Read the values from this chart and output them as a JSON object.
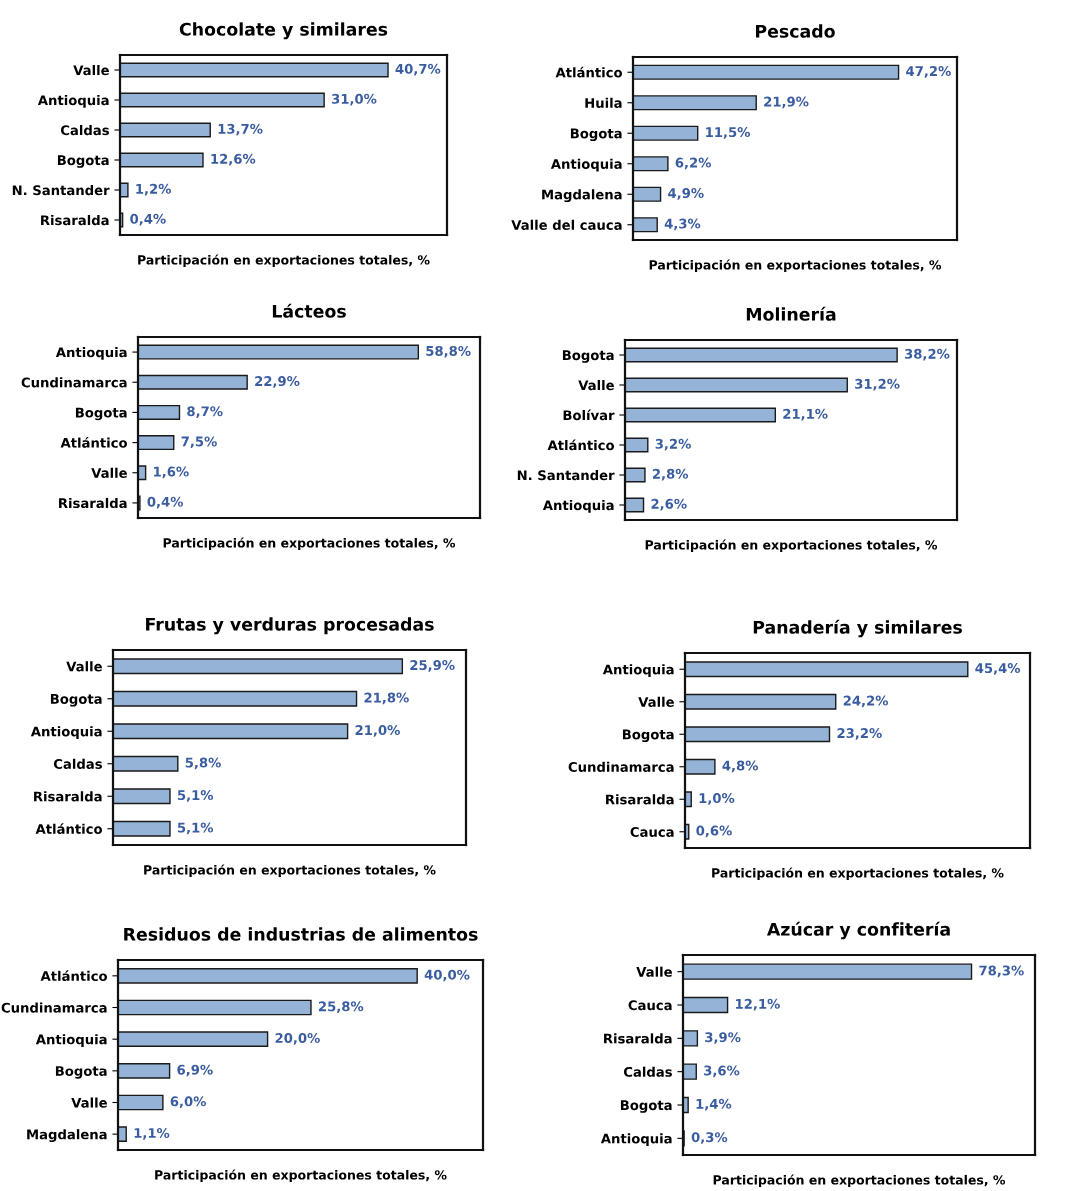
{
  "chart_data": [
    {
      "type": "bar",
      "orientation": "horizontal",
      "title": "Chocolate y similares",
      "xlabel": "Participación en exportaciones totales, %",
      "categories": [
        "Valle",
        "Antioquia",
        "Caldas",
        "Bogota",
        "N. Santander",
        "Risaralda"
      ],
      "values": [
        40.7,
        31.0,
        13.7,
        12.6,
        1.2,
        0.4
      ],
      "value_labels": [
        "40,7%",
        "31,0%",
        "13,7%",
        "12,6%",
        "1,2%",
        "0,4%"
      ],
      "color": "#95b3d7",
      "grid": false,
      "legend": false
    },
    {
      "type": "bar",
      "orientation": "horizontal",
      "title": "Pescado",
      "xlabel": "Participación en exportaciones totales, %",
      "categories": [
        "Atlántico",
        "Huila",
        "Bogota",
        "Antioquia",
        "Magdalena",
        "Valle del cauca"
      ],
      "values": [
        47.2,
        21.9,
        11.5,
        6.2,
        4.9,
        4.3
      ],
      "value_labels": [
        "47,2%",
        "21,9%",
        "11,5%",
        "6,2%",
        "4,9%",
        "4,3%"
      ],
      "color": "#95b3d7",
      "grid": false,
      "legend": false
    },
    {
      "type": "bar",
      "orientation": "horizontal",
      "title": "Lácteos",
      "xlabel": "Participación en exportaciones totales, %",
      "categories": [
        "Antioquia",
        "Cundinamarca",
        "Bogota",
        "Atlántico",
        "Valle",
        "Risaralda"
      ],
      "values": [
        58.8,
        22.9,
        8.7,
        7.5,
        1.6,
        0.4
      ],
      "value_labels": [
        "58,8%",
        "22,9%",
        "8,7%",
        "7,5%",
        "1,6%",
        "0,4%"
      ],
      "color": "#95b3d7",
      "grid": false,
      "legend": false
    },
    {
      "type": "bar",
      "orientation": "horizontal",
      "title": "Molinería",
      "xlabel": "Participación en exportaciones totales, %",
      "categories": [
        "Bogota",
        "Valle",
        "Bolívar",
        "Atlántico",
        "N. Santander",
        "Antioquia"
      ],
      "values": [
        38.2,
        31.2,
        21.1,
        3.2,
        2.8,
        2.6
      ],
      "value_labels": [
        "38,2%",
        "31,2%",
        "21,1%",
        "3,2%",
        "2,8%",
        "2,6%"
      ],
      "color": "#95b3d7",
      "grid": false,
      "legend": false
    },
    {
      "type": "bar",
      "orientation": "horizontal",
      "title": "Frutas y verduras procesadas",
      "xlabel": "Participación en exportaciones totales, %",
      "categories": [
        "Valle",
        "Bogota",
        "Antioquia",
        "Caldas",
        "Risaralda",
        "Atlántico"
      ],
      "values": [
        25.9,
        21.8,
        21.0,
        5.8,
        5.1,
        5.1
      ],
      "value_labels": [
        "25,9%",
        "21,8%",
        "21,0%",
        "5,8%",
        "5,1%",
        "5,1%"
      ],
      "color": "#95b3d7",
      "grid": false,
      "legend": false
    },
    {
      "type": "bar",
      "orientation": "horizontal",
      "title": "Panadería y similares",
      "xlabel": "Participación en exportaciones totales, %",
      "categories": [
        "Antioquia",
        "Valle",
        "Bogota",
        "Cundinamarca",
        "Risaralda",
        "Cauca"
      ],
      "values": [
        45.4,
        24.2,
        23.2,
        4.8,
        1.0,
        0.6
      ],
      "value_labels": [
        "45,4%",
        "24,2%",
        "23,2%",
        "4,8%",
        "1,0%",
        "0,6%"
      ],
      "color": "#95b3d7",
      "grid": false,
      "legend": false
    },
    {
      "type": "bar",
      "orientation": "horizontal",
      "title": "Residuos de industrias de alimentos",
      "xlabel": "Participación en exportaciones totales, %",
      "categories": [
        "Atlántico",
        "Cundinamarca",
        "Antioquia",
        "Bogota",
        "Valle",
        "Magdalena"
      ],
      "values": [
        40.0,
        25.8,
        20.0,
        6.9,
        6.0,
        1.1
      ],
      "value_labels": [
        "40,0%",
        "25,8%",
        "20,0%",
        "6,9%",
        "6,0%",
        "1,1%"
      ],
      "color": "#95b3d7",
      "grid": false,
      "legend": false
    },
    {
      "type": "bar",
      "orientation": "horizontal",
      "title": "Azúcar y confitería",
      "xlabel": "Participación en exportaciones totales, %",
      "categories": [
        "Valle",
        "Cauca",
        "Risaralda",
        "Caldas",
        "Bogota",
        "Antioquia"
      ],
      "values": [
        78.3,
        12.1,
        3.9,
        3.6,
        1.4,
        0.3
      ],
      "value_labels": [
        "78,3%",
        "12,1%",
        "3,9%",
        "3,6%",
        "1,4%",
        "0,3%"
      ],
      "color": "#95b3d7",
      "grid": false,
      "legend": false
    }
  ]
}
